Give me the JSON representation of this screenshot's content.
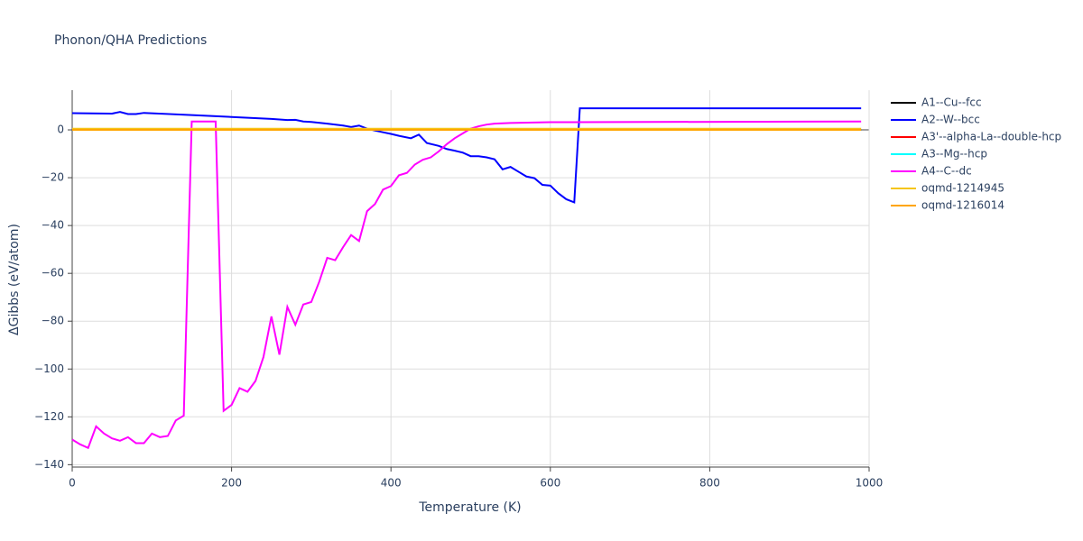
{
  "chart_data": {
    "type": "line",
    "title": "Phonon/QHA Predictions",
    "x_label": "Temperature (K)",
    "y_label": "ΔGibbs (eV/atom)",
    "xlim": [
      0,
      1000
    ],
    "ylim": [
      -141,
      16.6
    ],
    "xticks": [
      0,
      200,
      400,
      600,
      800,
      1000
    ],
    "yticks": [
      {
        "value": -140,
        "label": "−140"
      },
      {
        "value": -120,
        "label": "−120"
      },
      {
        "value": -100,
        "label": "−100"
      },
      {
        "value": -80,
        "label": "−80"
      },
      {
        "value": -60,
        "label": "−60"
      },
      {
        "value": -40,
        "label": "−40"
      },
      {
        "value": -20,
        "label": "−20"
      },
      0
    ],
    "grid": true,
    "legend": "right",
    "series": [
      {
        "name": "A1--Cu--fcc",
        "color": "#000000",
        "x": [
          0,
          990
        ],
        "values": [
          0,
          0
        ]
      },
      {
        "name": "A2--W--bcc",
        "color": "#0000ff",
        "x": [
          0,
          50,
          60,
          70,
          80,
          90,
          150,
          200,
          250,
          270,
          280,
          290,
          300,
          320,
          340,
          350,
          360,
          370,
          380,
          390,
          400,
          410,
          425,
          435,
          445,
          460,
          470,
          480,
          490,
          500,
          510,
          520,
          530,
          540,
          550,
          560,
          570,
          580,
          590,
          600,
          610,
          620,
          630,
          637,
          990
        ],
        "values": [
          7,
          6.8,
          7.5,
          6.6,
          6.6,
          7.1,
          6.2,
          5.4,
          4.6,
          4.1,
          4.2,
          3.5,
          3.3,
          2.6,
          1.8,
          1.2,
          1.8,
          0.5,
          -0.3,
          -1,
          -1.7,
          -2.5,
          -3.5,
          -2,
          -5.5,
          -6.7,
          -8,
          -8.7,
          -9.5,
          -11,
          -11,
          -11.5,
          -12.3,
          -16.5,
          -15.5,
          -17.5,
          -19.5,
          -20.2,
          -23,
          -23.3,
          -26.5,
          -29,
          -30.3,
          9,
          9
        ]
      },
      {
        "name": "A3'--alpha-La--double-hcp",
        "color": "#ff0000",
        "x": [
          0,
          990
        ],
        "values": [
          0,
          0
        ]
      },
      {
        "name": "A3--Mg--hcp",
        "color": "#00ffff",
        "x": [
          0,
          990
        ],
        "values": [
          0,
          0
        ]
      },
      {
        "name": "A4--C--dc",
        "color": "#ff00ff",
        "x": [
          0,
          10,
          20,
          30,
          40,
          50,
          60,
          70,
          80,
          90,
          100,
          110,
          120,
          130,
          140,
          150,
          180,
          190,
          200,
          210,
          220,
          230,
          240,
          250,
          260,
          270,
          280,
          290,
          300,
          310,
          320,
          330,
          340,
          350,
          360,
          370,
          380,
          390,
          400,
          410,
          420,
          430,
          440,
          450,
          460,
          470,
          480,
          490,
          500,
          510,
          520,
          530,
          550,
          600,
          990
        ],
        "values": [
          -129.5,
          -131.5,
          -133,
          -124,
          -127,
          -129,
          -130,
          -128.5,
          -131,
          -131,
          -127,
          -128.5,
          -128,
          -121.5,
          -119.5,
          3.5,
          3.5,
          -117.5,
          -115,
          -108,
          -109.5,
          -105,
          -95,
          -78,
          -94,
          -74,
          -81.5,
          -73,
          -72,
          -63.5,
          -53.5,
          -54.5,
          -49,
          -44,
          -46.5,
          -34,
          -31,
          -25,
          -23.5,
          -19,
          -18,
          -14.5,
          -12.5,
          -11.5,
          -9,
          -6,
          -3.5,
          -1.5,
          0.5,
          1.5,
          2.2,
          2.6,
          2.9,
          3.2,
          3.5
        ]
      },
      {
        "name": "oqmd-1214945",
        "color": "#f5c518",
        "x": [
          0,
          990
        ],
        "values": [
          0.5,
          0.5
        ]
      },
      {
        "name": "oqmd-1216014",
        "color": "#ffa500",
        "x": [
          0,
          990
        ],
        "values": [
          0,
          0
        ]
      }
    ]
  }
}
